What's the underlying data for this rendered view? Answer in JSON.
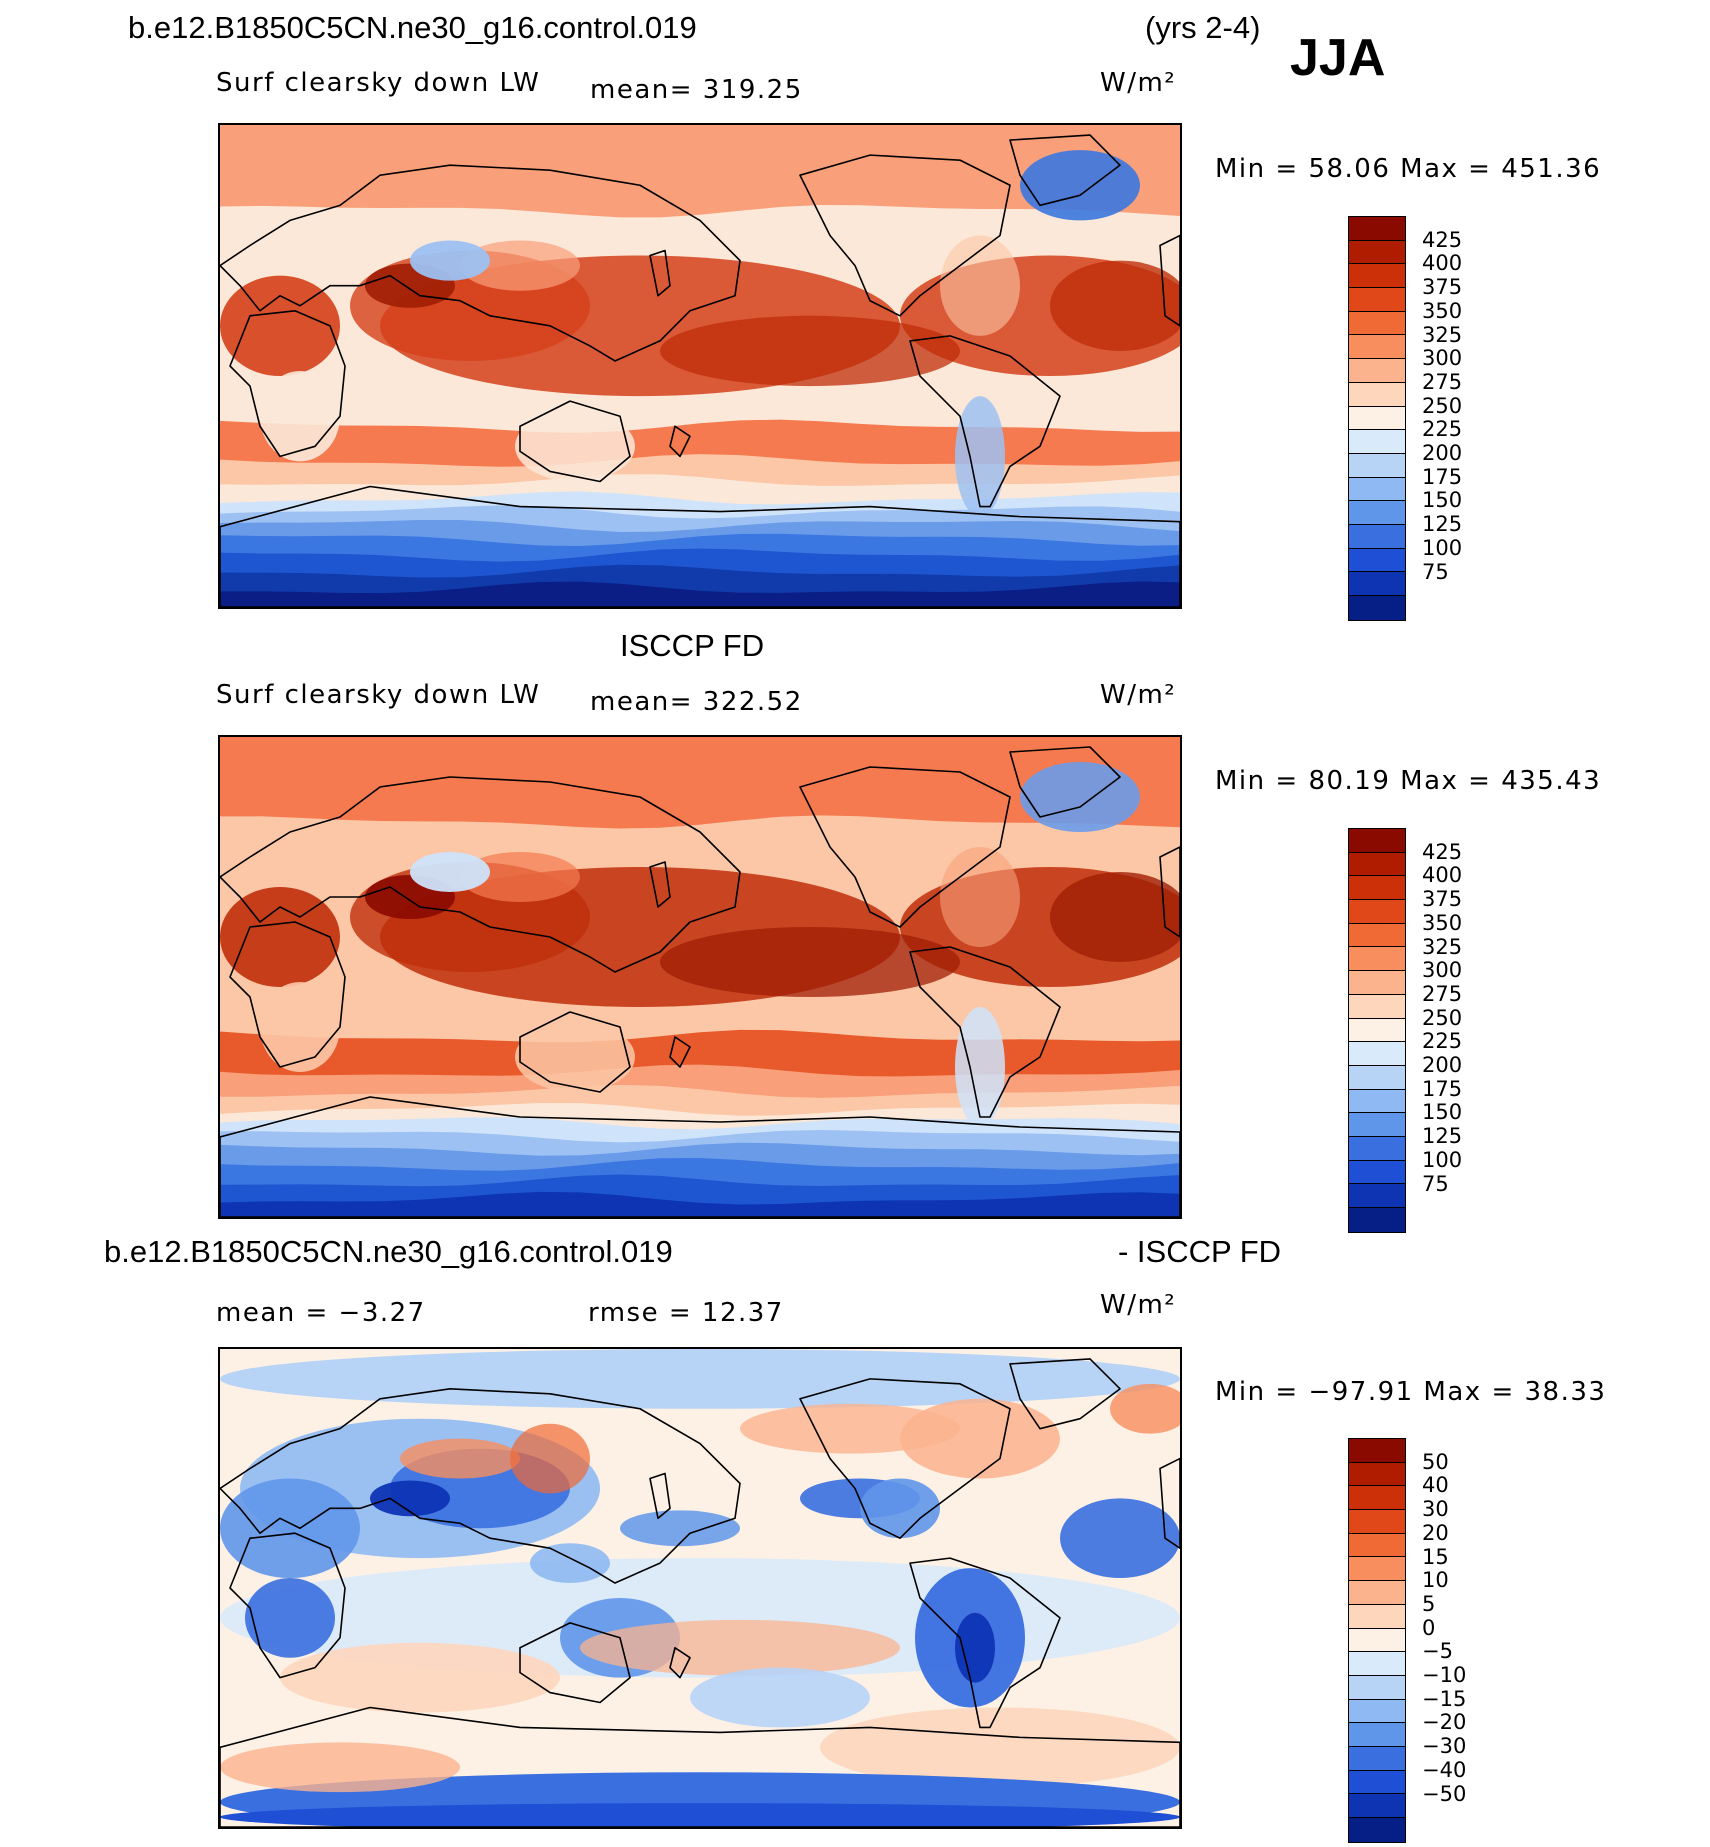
{
  "header": {
    "case_name": "b.e12.B1850C5CN.ne30_g16.control.019",
    "years": "(yrs 2-4)",
    "season": "JJA"
  },
  "panels": [
    {
      "id": "model",
      "title": "",
      "variable": "Surf clearsky down LW",
      "mean_text": "mean=  319.25",
      "units": "W/m²",
      "minmax_text": "Min =   58.06  Max =  451.36",
      "colorbar": {
        "labels": [
          "425",
          "400",
          "375",
          "350",
          "325",
          "300",
          "275",
          "250",
          "225",
          "200",
          "175",
          "150",
          "125",
          "100",
          "75"
        ],
        "colors": [
          "#8b0a00",
          "#b01c00",
          "#cc3008",
          "#e0481a",
          "#f06a36",
          "#f88e5e",
          "#fbb38e",
          "#fdd6bc",
          "#fdf1e5",
          "#d9eafb",
          "#b7d4f7",
          "#8fb9f2",
          "#6096ea",
          "#3a6fe0",
          "#1f4fd4",
          "#0e34b4",
          "#061f86"
        ]
      },
      "field_colors": [
        "#0a1e86",
        "#113aaa",
        "#1d56d0",
        "#3b77e0",
        "#6a9be9",
        "#9dc1f2",
        "#cfe3fa",
        "#fbe8d8",
        "#fcc7a6",
        "#f9a07a",
        "#f57a50",
        "#e85a2c",
        "#d4401a",
        "#bf2e0a",
        "#a01e04"
      ]
    },
    {
      "id": "obs",
      "title": "ISCCP FD",
      "variable": "Surf clearsky down LW",
      "mean_text": "mean=  322.52",
      "units": "W/m²",
      "minmax_text": "Min =   80.19  Max =  435.43",
      "colorbar": {
        "labels": [
          "425",
          "400",
          "375",
          "350",
          "325",
          "300",
          "275",
          "250",
          "225",
          "200",
          "175",
          "150",
          "125",
          "100",
          "75"
        ],
        "colors": [
          "#8b0a00",
          "#b01c00",
          "#cc3008",
          "#e0481a",
          "#f06a36",
          "#f88e5e",
          "#fbb38e",
          "#fdd6bc",
          "#fdf1e5",
          "#d9eafb",
          "#b7d4f7",
          "#8fb9f2",
          "#6096ea",
          "#3a6fe0",
          "#1f4fd4",
          "#0e34b4",
          "#061f86"
        ]
      },
      "field_colors": [
        "#0e34b4",
        "#1d56d0",
        "#3b77e0",
        "#6a9be9",
        "#9dc1f2",
        "#cfe3fa",
        "#fbe8d8",
        "#fcc7a6",
        "#f9a07a",
        "#f57a50",
        "#e85a2c",
        "#d4401a",
        "#bf2e0a",
        "#a01e04",
        "#8b0a00"
      ]
    },
    {
      "id": "diff",
      "title_left": "b.e12.B1850C5CN.ne30_g16.control.019",
      "title_right": "- ISCCP FD",
      "mean_text": "mean =   −3.27",
      "rmse_text": "rmse =   12.37",
      "units": "W/m²",
      "minmax_text": "Min = −97.91  Max =   38.33",
      "colorbar": {
        "labels": [
          "50",
          "40",
          "30",
          "20",
          "15",
          "10",
          "5",
          "0",
          "−5",
          "−10",
          "−15",
          "−20",
          "−30",
          "−40",
          "−50"
        ],
        "colors": [
          "#8b0a00",
          "#b01c00",
          "#cc3008",
          "#e0481a",
          "#f06a36",
          "#f88e5e",
          "#fbb38e",
          "#fdd6bc",
          "#fdf1e5",
          "#d9eafb",
          "#b7d4f7",
          "#8fb9f2",
          "#6096ea",
          "#3a6fe0",
          "#1f4fd4",
          "#0e34b4",
          "#061f86"
        ]
      },
      "field_colors": [
        "#0e34b4",
        "#1f4fd4",
        "#3a6fe0",
        "#6096ea",
        "#8fb9f2",
        "#b7d4f7",
        "#d9eafb",
        "#fdf1e5",
        "#fdd6bc",
        "#fbb38e",
        "#f88e5e",
        "#f06a36"
      ]
    }
  ]
}
